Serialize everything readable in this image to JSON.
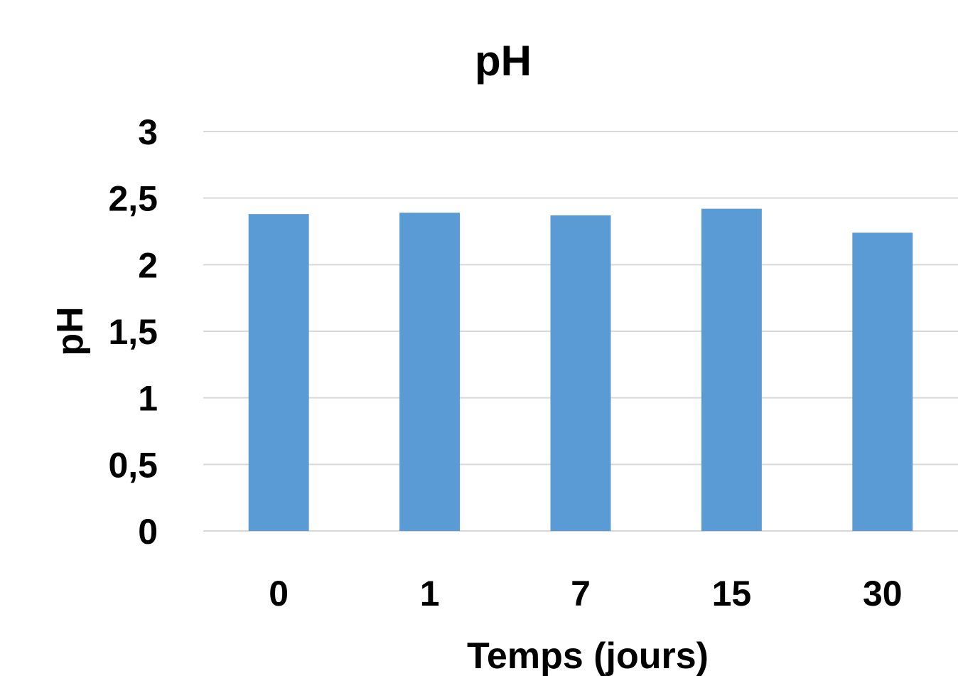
{
  "chart_data": {
    "type": "bar",
    "title": "pH",
    "xlabel": "Temps (jours)",
    "ylabel": "pH",
    "categories": [
      "0",
      "1",
      "7",
      "15",
      "30"
    ],
    "values": [
      2.38,
      2.39,
      2.37,
      2.42,
      2.24
    ],
    "ylim": [
      0,
      3
    ],
    "yticks": [
      0,
      0.5,
      1,
      1.5,
      2,
      2.5,
      3
    ],
    "ytick_labels": [
      "0",
      "0,5",
      "1",
      "1,5",
      "2",
      "2,5",
      "3"
    ],
    "grid": true,
    "legend": "none",
    "colors": {
      "bar": "#5b9bd5",
      "grid": "#d9d9d9"
    }
  }
}
